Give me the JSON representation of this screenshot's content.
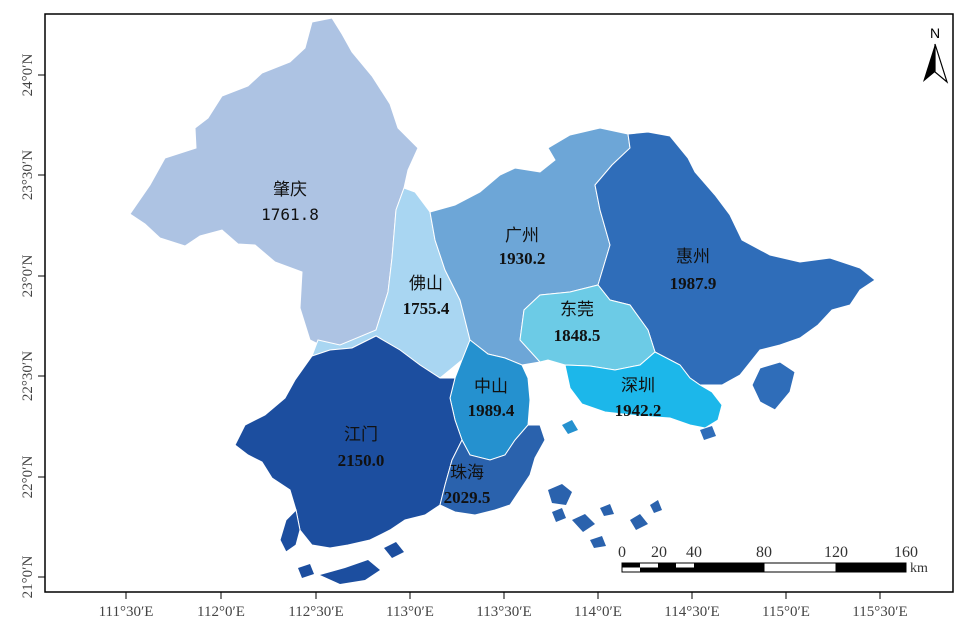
{
  "map": {
    "regions": [
      {
        "id": "zhaoqing",
        "name": "肇庆",
        "value": "1761.8",
        "color": "#adc3e3"
      },
      {
        "id": "foshan",
        "name": "佛山",
        "value": "1755.4",
        "color": "#a9d6f2"
      },
      {
        "id": "guangzhou",
        "name": "广州",
        "value": "1930.2",
        "color": "#6da6d7"
      },
      {
        "id": "huizhou",
        "name": "惠州",
        "value": "1987.9",
        "color": "#2f6db9"
      },
      {
        "id": "dongguan",
        "name": "东莞",
        "value": "1848.5",
        "color": "#6ccbe6"
      },
      {
        "id": "shenzhen",
        "name": "深圳",
        "value": "1942.2",
        "color": "#1cb7ea"
      },
      {
        "id": "zhongshan",
        "name": "中山",
        "value": "1989.4",
        "color": "#2591cf"
      },
      {
        "id": "jiangmen",
        "name": "江门",
        "value": "2150.0",
        "color": "#1c4e9f"
      },
      {
        "id": "zhuhai",
        "name": "珠海",
        "value": "2029.5",
        "color": "#2a62ad"
      }
    ],
    "x_ticks": [
      "111°30′E",
      "112°0′E",
      "112°30′E",
      "113°0′E",
      "113°30′E",
      "114°0′E",
      "114°30′E",
      "115°0′E",
      "115°30′E"
    ],
    "y_ticks": [
      "24°0′N",
      "23°30′N",
      "23°0′N",
      "22°30′N",
      "22°0′N",
      "21°0′N"
    ],
    "north_label": "N",
    "scale": {
      "labels": [
        "0",
        "20",
        "40",
        "80",
        "120",
        "160"
      ],
      "unit": "km"
    }
  }
}
